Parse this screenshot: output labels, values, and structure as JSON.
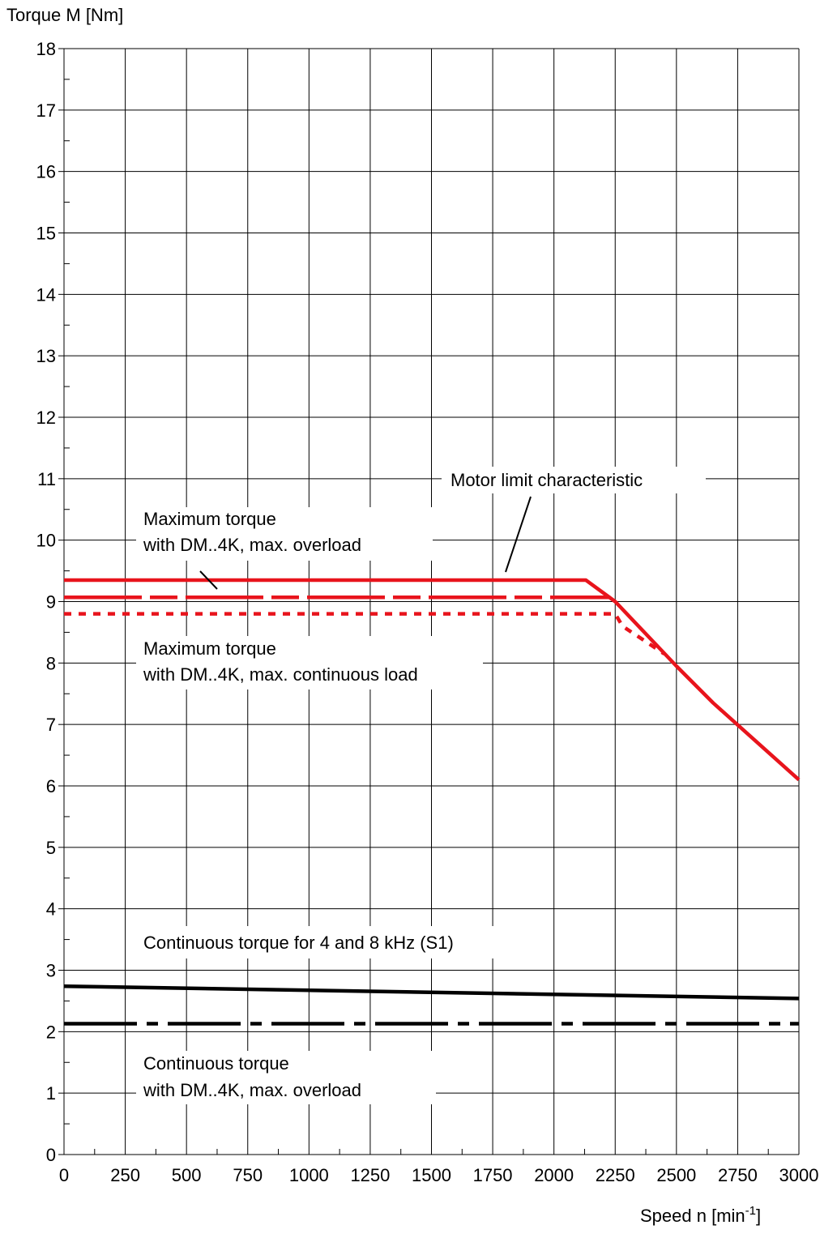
{
  "chart_data": {
    "type": "line",
    "ylabel": "Torque M [Nm]",
    "xlabel": "Speed n [min",
    "xlabel_superscript": "-1",
    "xlabel_suffix": "]",
    "xlim": [
      0,
      3000
    ],
    "ylim": [
      0,
      18
    ],
    "x_ticks": [
      "0",
      "250",
      "500",
      "750",
      "1000",
      "1250",
      "1500",
      "1750",
      "2000",
      "2250",
      "2500",
      "2750",
      "3000"
    ],
    "y_ticks": [
      "0",
      "1",
      "2",
      "3",
      "4",
      "5",
      "6",
      "7",
      "8",
      "9",
      "10",
      "11",
      "12",
      "13",
      "14",
      "15",
      "16",
      "17",
      "18"
    ],
    "grid": true,
    "series": [
      {
        "name": "Motor limit characteristic",
        "color": "#e8141c",
        "style": "solid",
        "points": [
          [
            0,
            9.35
          ],
          [
            2130,
            9.35
          ],
          [
            2250,
            9.0
          ],
          [
            2500,
            7.95
          ],
          [
            2650,
            7.35
          ],
          [
            3000,
            6.1
          ]
        ]
      },
      {
        "name": "Maximum torque with DM..4K, max. overload",
        "color": "#e8141c",
        "style": "long-dash",
        "points": [
          [
            0,
            9.07
          ],
          [
            2230,
            9.07
          ]
        ]
      },
      {
        "name": "Maximum torque with DM..4K, max. continuous load",
        "color": "#e8141c",
        "style": "dotted",
        "points": [
          [
            0,
            8.8
          ],
          [
            2250,
            8.8
          ],
          [
            2280,
            8.6
          ],
          [
            2450,
            8.15
          ]
        ]
      },
      {
        "name": "Continuous torque for 4 and 8 kHz (S1)",
        "color": "#000000",
        "style": "solid",
        "points": [
          [
            0,
            2.74
          ],
          [
            3000,
            2.54
          ]
        ]
      },
      {
        "name": "Continuous torque with DM..4K, max. overload",
        "color": "#000000",
        "style": "dash-dot",
        "points": [
          [
            0,
            2.13
          ],
          [
            3000,
            2.13
          ]
        ]
      }
    ],
    "annotations": {
      "motor_limit": "Motor limit characteristic",
      "max_overload_line1": "Maximum torque",
      "max_overload_line2": "with DM..4K, max. overload",
      "max_continuous_line1": "Maximum torque",
      "max_continuous_line2": "with DM..4K, max. continuous load",
      "continuous_s1": "Continuous torque for 4 and 8 kHz (S1)",
      "continuous_overload_line1": "Continuous torque",
      "continuous_overload_line2": "with DM..4K, max. overload"
    }
  }
}
